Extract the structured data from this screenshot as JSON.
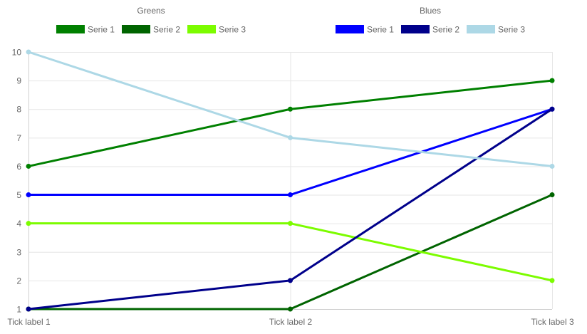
{
  "chart_data": {
    "type": "line",
    "categories": [
      "Tick label 1",
      "Tick label 2",
      "Tick label 3"
    ],
    "ylim": [
      1,
      10
    ],
    "yticks": [
      1,
      2,
      3,
      4,
      5,
      6,
      7,
      8,
      9,
      10
    ],
    "grid": true,
    "legend_groups": [
      {
        "title": "Greens",
        "series": [
          {
            "name": "Serie 1",
            "color": "#008000",
            "values": [
              6,
              8,
              9
            ]
          },
          {
            "name": "Serie 2",
            "color": "#006400",
            "values": [
              1,
              1,
              5
            ]
          },
          {
            "name": "Serie 3",
            "color": "#7CFC00",
            "values": [
              4,
              4,
              2
            ]
          }
        ]
      },
      {
        "title": "Blues",
        "series": [
          {
            "name": "Serie 1",
            "color": "#0000FF",
            "values": [
              5,
              5,
              8
            ]
          },
          {
            "name": "Serie 2",
            "color": "#00008B",
            "values": [
              1,
              2,
              8
            ]
          },
          {
            "name": "Serie 3",
            "color": "#ADD8E6",
            "values": [
              10,
              7,
              6
            ]
          }
        ]
      }
    ]
  }
}
